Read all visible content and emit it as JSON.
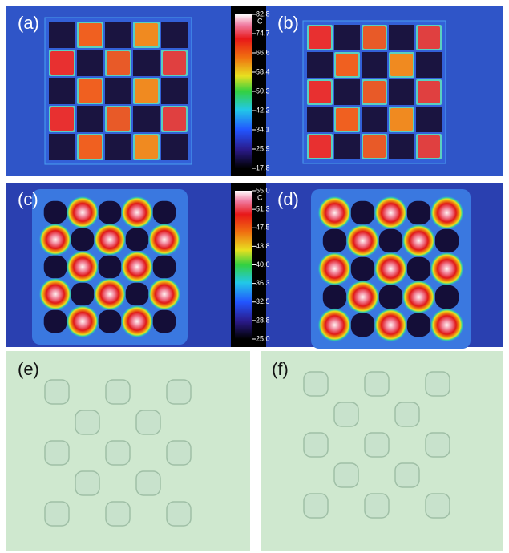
{
  "panels": {
    "a": "(a)",
    "b": "(b)",
    "c": "(c)",
    "d": "(d)",
    "e": "(e)",
    "f": "(f)"
  },
  "colorbars": [
    {
      "unit": "C",
      "ticks": [
        "82.8",
        "74.7",
        "66.6",
        "58.4",
        "50.3",
        "42.2",
        "34.1",
        "25.9",
        "17.8"
      ]
    },
    {
      "unit": "C",
      "ticks": [
        "55.0",
        "51.3",
        "47.5",
        "43.8",
        "40.0",
        "36.3",
        "32.5",
        "28.8",
        "25.0"
      ]
    }
  ]
}
